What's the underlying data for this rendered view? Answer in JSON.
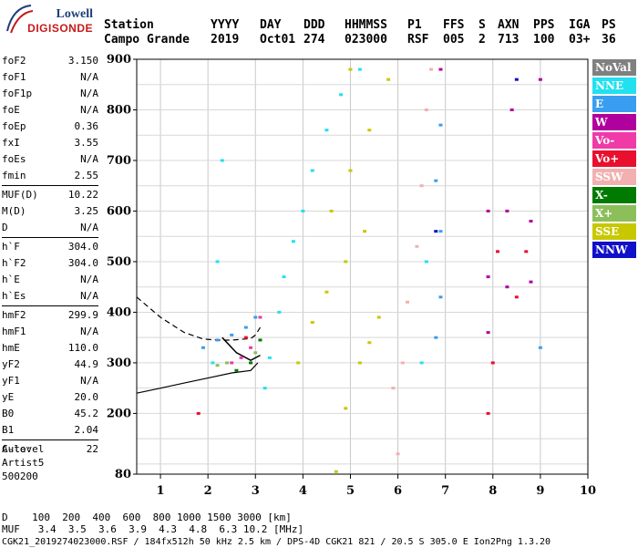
{
  "logo": {
    "line1": "Lowell",
    "line2": "DIGISONDE"
  },
  "header": {
    "labels": [
      "Station",
      "YYYY",
      "DAY",
      "DDD",
      "HHMMSS",
      "P1",
      "FFS",
      "S",
      "AXN",
      "PPS",
      "IGA",
      "PS"
    ],
    "values": [
      "Campo Grande",
      "2019",
      "Oct01",
      "274",
      "023000",
      "RSF",
      "005",
      "2",
      "713",
      "100",
      "03+",
      "36"
    ]
  },
  "params": [
    [
      [
        "foF2",
        "3.150"
      ],
      [
        "foF1",
        "N/A"
      ],
      [
        "foF1p",
        "N/A"
      ],
      [
        "foE",
        "N/A"
      ],
      [
        "foEp",
        "0.36"
      ],
      [
        "fxI",
        "3.55"
      ],
      [
        "foEs",
        "N/A"
      ],
      [
        "fmin",
        "2.55"
      ]
    ],
    [
      [
        "MUF(D)",
        "10.22"
      ],
      [
        "M(D)",
        "3.25"
      ],
      [
        "D",
        "N/A"
      ]
    ],
    [
      [
        "h`F",
        "304.0"
      ],
      [
        "h`F2",
        "304.0"
      ],
      [
        "h`E",
        "N/A"
      ],
      [
        "h`Es",
        "N/A"
      ]
    ],
    [
      [
        "hmF2",
        "299.9"
      ],
      [
        "hmF1",
        "N/A"
      ],
      [
        "hmE",
        "110.0"
      ],
      [
        "yF2",
        "44.9"
      ],
      [
        "yF1",
        "N/A"
      ],
      [
        "yE",
        "20.0"
      ],
      [
        "B0",
        "45.2"
      ],
      [
        "B1",
        "2.04"
      ]
    ],
    [
      [
        "C-level",
        "22"
      ]
    ]
  ],
  "auto": [
    "Auto:",
    "Artist5",
    "500200"
  ],
  "legend": [
    {
      "label": "NoVal",
      "color": "#808080"
    },
    {
      "label": "NNE",
      "color": "#22e0f0"
    },
    {
      "label": "E",
      "color": "#3a9ef0"
    },
    {
      "label": "W",
      "color": "#b0009e"
    },
    {
      "label": "Vo-",
      "color": "#f03aa8"
    },
    {
      "label": "Vo+",
      "color": "#e8102e"
    },
    {
      "label": "SSW",
      "color": "#f2b0b0"
    },
    {
      "label": "X-",
      "color": "#007a00"
    },
    {
      "label": "X+",
      "color": "#8cbf5a"
    },
    {
      "label": "SSE",
      "color": "#c8c800"
    },
    {
      "label": "NNW",
      "color": "#1010c8"
    }
  ],
  "footer": {
    "line1": "D    100  200  400  600  800 1000 1500 3000 [km]",
    "line2": "MUF   3.4  3.5  3.6  3.9  4.3  4.8  6.3 10.2 [MHz]",
    "line3": "CGK21_2019274023000.RSF / 184fx512h 50 kHz 2.5 km / DPS-4D CGK21 821 / 20.5 S 305.0 E Ion2Png 1.3.20"
  },
  "chart_data": {
    "type": "scatter",
    "xlim": [
      0.5,
      10.0
    ],
    "ylim": [
      80,
      900
    ],
    "xticks": [
      1,
      2,
      3,
      4,
      5,
      6,
      7,
      8,
      9,
      10
    ],
    "yticks": [
      80,
      200,
      300,
      400,
      500,
      600,
      700,
      800,
      900
    ],
    "grid": true,
    "series": [
      {
        "name": "NNE",
        "color": "#22e0f0",
        "points": [
          [
            3.2,
            250
          ],
          [
            3.3,
            310
          ],
          [
            3.5,
            400
          ],
          [
            3.6,
            470
          ],
          [
            3.8,
            540
          ],
          [
            4.0,
            600
          ],
          [
            4.2,
            680
          ],
          [
            4.5,
            760
          ],
          [
            4.8,
            830
          ],
          [
            5.2,
            880
          ],
          [
            2.1,
            300
          ],
          [
            2.2,
            500
          ],
          [
            2.3,
            700
          ],
          [
            6.5,
            300
          ],
          [
            6.6,
            500
          ]
        ]
      },
      {
        "name": "E",
        "color": "#3a9ef0",
        "points": [
          [
            1.9,
            330
          ],
          [
            2.2,
            345
          ],
          [
            2.5,
            355
          ],
          [
            2.8,
            370
          ],
          [
            3.0,
            390
          ],
          [
            6.8,
            350
          ],
          [
            6.9,
            430
          ],
          [
            6.9,
            560
          ],
          [
            6.8,
            660
          ],
          [
            6.9,
            770
          ],
          [
            9.0,
            330
          ]
        ]
      },
      {
        "name": "W",
        "color": "#b0009e",
        "points": [
          [
            7.9,
            360
          ],
          [
            7.9,
            470
          ],
          [
            7.9,
            600
          ],
          [
            8.3,
            450
          ],
          [
            8.3,
            600
          ],
          [
            8.4,
            800
          ],
          [
            8.8,
            460
          ],
          [
            8.8,
            580
          ],
          [
            9.0,
            860
          ],
          [
            6.9,
            880
          ]
        ]
      },
      {
        "name": "Vo-",
        "color": "#f03aa8",
        "points": [
          [
            2.5,
            300
          ],
          [
            2.7,
            310
          ],
          [
            2.9,
            330
          ],
          [
            3.1,
            390
          ]
        ]
      },
      {
        "name": "Vo+",
        "color": "#e8102e",
        "points": [
          [
            1.8,
            200
          ],
          [
            2.8,
            350
          ],
          [
            7.9,
            200
          ],
          [
            8.0,
            300
          ],
          [
            8.1,
            520
          ],
          [
            8.5,
            430
          ],
          [
            8.7,
            520
          ]
        ]
      },
      {
        "name": "SSW",
        "color": "#f2b0b0",
        "points": [
          [
            6.0,
            120
          ],
          [
            6.1,
            300
          ],
          [
            6.2,
            420
          ],
          [
            6.4,
            530
          ],
          [
            6.5,
            650
          ],
          [
            6.6,
            800
          ],
          [
            6.7,
            880
          ],
          [
            5.9,
            250
          ]
        ]
      },
      {
        "name": "X-",
        "color": "#007a00",
        "points": [
          [
            2.6,
            285
          ],
          [
            2.9,
            300
          ],
          [
            3.1,
            345
          ]
        ]
      },
      {
        "name": "X+",
        "color": "#8cbf5a",
        "points": [
          [
            2.2,
            295
          ],
          [
            2.4,
            300
          ],
          [
            3.0,
            320
          ]
        ]
      },
      {
        "name": "SSE",
        "color": "#c8c800",
        "points": [
          [
            4.7,
            85
          ],
          [
            4.9,
            210
          ],
          [
            5.2,
            300
          ],
          [
            5.4,
            340
          ],
          [
            5.6,
            390
          ],
          [
            3.9,
            300
          ],
          [
            4.2,
            380
          ],
          [
            4.5,
            440
          ],
          [
            4.9,
            500
          ],
          [
            5.3,
            560
          ],
          [
            4.6,
            600
          ],
          [
            5.0,
            680
          ],
          [
            5.4,
            760
          ],
          [
            5.8,
            860
          ],
          [
            5.0,
            880
          ]
        ]
      },
      {
        "name": "NNW",
        "color": "#1010c8",
        "points": [
          [
            6.8,
            560
          ],
          [
            8.5,
            860
          ]
        ]
      }
    ],
    "profile_dashed": [
      [
        0.5,
        430
      ],
      [
        1.0,
        390
      ],
      [
        1.5,
        360
      ],
      [
        1.9,
        347
      ],
      [
        2.2,
        345
      ],
      [
        2.5,
        345
      ],
      [
        2.9,
        348
      ],
      [
        3.0,
        355
      ],
      [
        3.1,
        370
      ]
    ],
    "profile_solid": [
      [
        0.5,
        240
      ],
      [
        1.0,
        250
      ],
      [
        1.5,
        260
      ],
      [
        2.0,
        270
      ],
      [
        2.5,
        280
      ],
      [
        2.9,
        285
      ],
      [
        3.05,
        300
      ]
    ],
    "profile_black_trace": [
      [
        2.3,
        350
      ],
      [
        2.6,
        320
      ],
      [
        2.9,
        305
      ],
      [
        3.1,
        315
      ]
    ]
  }
}
